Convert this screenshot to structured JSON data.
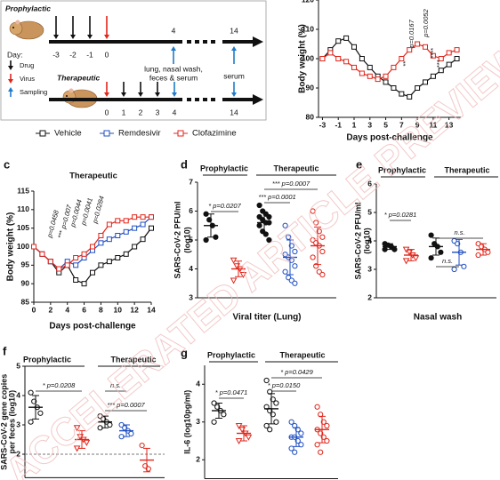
{
  "schematic": {
    "title1": "Prophylactic",
    "day_label": "Day:",
    "days_top": [
      "-3",
      "-2",
      "-1",
      "0",
      "4",
      "14"
    ],
    "key": [
      "Drug",
      "Virus",
      "Sampling"
    ],
    "title2": "Therapeutic",
    "sample_note": [
      "lung, nasal wash,",
      "feces & serum"
    ],
    "serum": "serum",
    "days_bottom": [
      "0",
      "1",
      "2",
      "3",
      "4",
      "14"
    ]
  },
  "watermark": "ACCELERATED ARTICLE PREVIEW",
  "chart_data": [
    {
      "type": "line",
      "xlabel": "Days post-challenge",
      "ylabel": "Body weight (%)",
      "x": [
        -3,
        -2,
        -1,
        0,
        1,
        2,
        3,
        4,
        5,
        6,
        7,
        8,
        9,
        10,
        11,
        12,
        13,
        14
      ],
      "series": [
        {
          "color": "#111111",
          "values": [
            100,
            103,
            106,
            107,
            104,
            100,
            97,
            94,
            92,
            90,
            88,
            87,
            90,
            92,
            94,
            96,
            98,
            100
          ]
        },
        {
          "color": "#e0261b",
          "values": [
            100,
            102,
            100,
            99,
            97,
            95,
            94,
            93,
            94,
            97,
            100,
            103,
            105,
            104,
            101,
            100,
            102,
            103
          ]
        }
      ],
      "xlim": [
        -3.5,
        14.5
      ],
      "xticks": [
        -3,
        -1,
        1,
        3,
        5,
        7,
        9,
        11,
        13
      ],
      "ylim": [
        80,
        120
      ],
      "yticks": [
        80,
        90,
        100,
        110,
        120
      ],
      "annotations": [
        "p=0.0167",
        "p=0.0052",
        "**",
        "****",
        "***"
      ]
    },
    {
      "type": "line",
      "label": "c",
      "title": "Therapeutic",
      "xlabel": "Days post-challenge",
      "ylabel": "Body weight (%)",
      "x": [
        0,
        1,
        2,
        3,
        4,
        5,
        6,
        7,
        8,
        9,
        10,
        11,
        12,
        13,
        14
      ],
      "series": [
        {
          "name": "Vehicle",
          "color": "#111111",
          "values": [
            100,
            98,
            96,
            93,
            95,
            91,
            90,
            93,
            95,
            96,
            97,
            98,
            100,
            102,
            105
          ]
        },
        {
          "name": "Remdesivir",
          "color": "#1f4fc2",
          "values": [
            100,
            98,
            96,
            94,
            96,
            95,
            97,
            99,
            101,
            102,
            103,
            104,
            105,
            106,
            108
          ]
        },
        {
          "name": "Clofazimine",
          "color": "#e0261b",
          "values": [
            100,
            98,
            96,
            94,
            95,
            97,
            98,
            100,
            103,
            106,
            107,
            107,
            108,
            108,
            108
          ]
        }
      ],
      "xlim": [
        0,
        14
      ],
      "xticks": [
        0,
        2,
        4,
        6,
        8,
        10,
        12,
        14
      ],
      "ylim": [
        85,
        115
      ],
      "yticks": [
        85,
        90,
        95,
        100,
        105,
        110,
        115
      ],
      "annotations": [
        "p=0.0458",
        "***",
        "p=0.007",
        "p=0.0044",
        "p=0.0041",
        "p=0.0284"
      ]
    },
    {
      "type": "dot",
      "label": "d",
      "group_titles": [
        "Prophylactic",
        "Therapeutic"
      ],
      "xlabel": "Viral titer (Lung)",
      "ylabel": [
        "SARS-CoV-2 PFU/ml",
        "(log10)"
      ],
      "ylim": [
        3,
        7
      ],
      "yticks": [
        3,
        4,
        5,
        6,
        7
      ],
      "groups": [
        {
          "color": "#111111",
          "marker": "circle",
          "filled": true,
          "values": [
            5.9,
            5.7,
            5.5,
            5.1,
            5.0
          ],
          "mean": 5.5,
          "sd": 0.4
        },
        {
          "color": "#e0261b",
          "marker": "triangle",
          "filled": false,
          "values": [
            4.3,
            4.1,
            4.0,
            3.8,
            3.6
          ],
          "mean": 4.0,
          "sd": 0.27
        },
        {
          "color": "#111111",
          "marker": "circle",
          "filled": true,
          "values": [
            6.2,
            6.0,
            5.9,
            5.8,
            5.8,
            5.7,
            5.6,
            5.6,
            5.5,
            5.3,
            5.2,
            5.0
          ],
          "mean": 5.6,
          "sd": 0.35
        },
        {
          "color": "#1f4fc2",
          "marker": "circle",
          "filled": false,
          "values": [
            5.5,
            5.1,
            4.8,
            4.6,
            4.5,
            4.4,
            4.3,
            4.1,
            3.9,
            3.7,
            3.6,
            3.5
          ],
          "mean": 4.4,
          "sd": 0.6
        },
        {
          "color": "#e0261b",
          "marker": "circle",
          "filled": false,
          "values": [
            6.0,
            5.6,
            5.3,
            5.1,
            5.0,
            4.9,
            4.8,
            4.6,
            4.4,
            4.1,
            3.9,
            3.8
          ],
          "mean": 4.8,
          "sd": 0.65
        }
      ],
      "comparisons": [
        {
          "from": 0,
          "to": 1,
          "text": "* p=0.0207"
        },
        {
          "from": 2,
          "to": 3,
          "text": "*** p=0.0001"
        },
        {
          "from": 2,
          "to": 4,
          "text": "*** p=0.0007"
        }
      ]
    },
    {
      "type": "dot",
      "label": "e",
      "group_titles": [
        "Prophylactic",
        "Therapeutic"
      ],
      "xlabel": "Nasal wash",
      "ylabel": [
        "SARS-CoV-2 PFU/ml",
        "(log10)"
      ],
      "ylim": [
        2,
        6
      ],
      "yticks": [
        2,
        3,
        4,
        5,
        6
      ],
      "groups": [
        {
          "color": "#111111",
          "marker": "circle",
          "filled": true,
          "values": [
            3.9,
            3.85,
            3.8,
            3.7,
            3.7
          ],
          "mean": 3.8,
          "sd": 0.1
        },
        {
          "color": "#e0261b",
          "marker": "triangle",
          "filled": false,
          "values": [
            3.7,
            3.6,
            3.5,
            3.4,
            3.3
          ],
          "mean": 3.5,
          "sd": 0.2
        },
        {
          "color": "#111111",
          "marker": "circle",
          "filled": true,
          "values": [
            4.2,
            3.9,
            3.8,
            3.6,
            3.4
          ],
          "mean": 3.8,
          "sd": 0.3
        },
        {
          "color": "#1f4fc2",
          "marker": "circle",
          "filled": false,
          "values": [
            4.0,
            3.9,
            3.6,
            3.1,
            3.0
          ],
          "mean": 3.6,
          "sd": 0.45
        },
        {
          "color": "#e0261b",
          "marker": "circle",
          "filled": false,
          "values": [
            3.9,
            3.8,
            3.7,
            3.6,
            3.5
          ],
          "mean": 3.7,
          "sd": 0.2
        }
      ],
      "comparisons": [
        {
          "from": 0,
          "to": 1,
          "text": "* p=0.0281"
        },
        {
          "from": 2,
          "to": 3,
          "text": "n.s."
        },
        {
          "from": 2,
          "to": 4,
          "text": "n.s."
        }
      ]
    },
    {
      "type": "dot",
      "label": "f",
      "group_titles": [
        "Prophylactic",
        "Therapeutic"
      ],
      "ylabel": [
        "SARS-CoV-2 gene copies",
        "per feces (log10)"
      ],
      "ylim": [
        1.2,
        5
      ],
      "yticks": [
        2,
        3,
        4,
        5
      ],
      "threshold": 2,
      "groups": [
        {
          "color": "#111111",
          "marker": "circle",
          "filled": false,
          "values": [
            4.1,
            3.8,
            3.6,
            3.4,
            3.1
          ],
          "mean": 3.6,
          "sd": 0.4
        },
        {
          "color": "#e0261b",
          "marker": "triangle",
          "filled": false,
          "values": [
            2.9,
            2.6,
            2.5,
            2.4,
            2.2
          ],
          "mean": 2.5,
          "sd": 0.3
        },
        {
          "color": "#111111",
          "marker": "circle",
          "filled": false,
          "values": [
            3.3,
            3.2,
            3.1,
            3.0,
            2.9
          ],
          "mean": 3.1,
          "sd": 0.2
        },
        {
          "color": "#1f4fc2",
          "marker": "circle",
          "filled": false,
          "values": [
            3.0,
            2.9,
            2.8,
            2.7,
            2.6
          ],
          "mean": 2.8,
          "sd": 0.2
        },
        {
          "color": "#e0261b",
          "marker": "circle",
          "filled": false,
          "values": [
            2.3,
            1.6,
            1.5
          ],
          "mean": 1.8,
          "sd": 0.4
        }
      ],
      "comparisons": [
        {
          "from": 0,
          "to": 1,
          "text": "* p=0.0208"
        },
        {
          "from": 2,
          "to": 4,
          "text": "*** p=0.0007"
        },
        {
          "from": 2,
          "to": 3,
          "text": "n.s."
        }
      ]
    },
    {
      "type": "dot",
      "label": "g",
      "group_titles": [
        "Prophylactic",
        "Therapeutic"
      ],
      "ylabel": [
        "IL-6 (log10pg/ml)"
      ],
      "ylim": [
        1.5,
        4.5
      ],
      "yticks": [
        2,
        3,
        4
      ],
      "groups": [
        {
          "color": "#111111",
          "marker": "circle",
          "filled": false,
          "values": [
            3.5,
            3.4,
            3.3,
            3.2,
            3.0
          ],
          "mean": 3.3,
          "sd": 0.2
        },
        {
          "color": "#e0261b",
          "marker": "triangle",
          "filled": false,
          "values": [
            2.9,
            2.8,
            2.7,
            2.6,
            2.5
          ],
          "mean": 2.7,
          "sd": 0.2
        },
        {
          "color": "#111111",
          "marker": "circle",
          "filled": false,
          "values": [
            4.1,
            3.8,
            3.6,
            3.5,
            3.4,
            3.3,
            3.2,
            3.0,
            2.9,
            2.8
          ],
          "mean": 3.35,
          "sd": 0.4
        },
        {
          "color": "#1f4fc2",
          "marker": "circle",
          "filled": false,
          "values": [
            3.0,
            2.9,
            2.8,
            2.7,
            2.6,
            2.6,
            2.5,
            2.4,
            2.3,
            2.2
          ],
          "mean": 2.6,
          "sd": 0.25
        },
        {
          "color": "#e0261b",
          "marker": "circle",
          "filled": false,
          "values": [
            3.4,
            3.2,
            3.0,
            2.9,
            2.8,
            2.7,
            2.6,
            2.5,
            2.4,
            2.2
          ],
          "mean": 2.8,
          "sd": 0.35
        }
      ],
      "comparisons": [
        {
          "from": 0,
          "to": 1,
          "text": "* p=0.0471"
        },
        {
          "from": 2,
          "to": 3,
          "text": "* p=0.0150"
        },
        {
          "from": 2,
          "to": 4,
          "text": "* p=0.0429"
        }
      ]
    }
  ]
}
